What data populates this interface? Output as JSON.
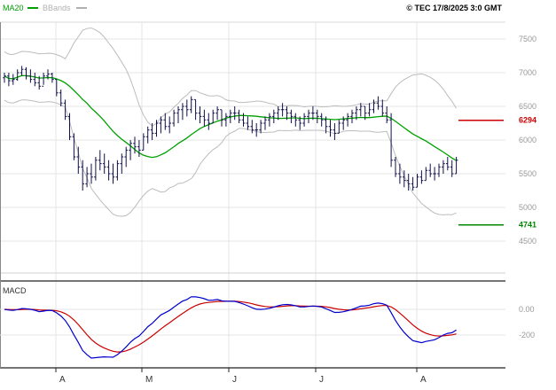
{
  "header": {
    "legend": [
      {
        "label": "MA20",
        "color": "#00a000"
      },
      {
        "label": "BBands",
        "color": "#b0b0b0"
      }
    ],
    "copyright": "© TEC 17/8/2025 3:0 GMT"
  },
  "macd_panel": {
    "title": "MACD"
  },
  "colors": {
    "bars": "#10104a",
    "ma20": "#00a000",
    "bbands": "#bcbcbc",
    "grid": "#e4e4e4",
    "axis_text": "#999999",
    "frame": "#333333",
    "resistance": "#cc0000",
    "support": "#008800",
    "macd_line": "#0000cc",
    "macd_signal": "#cc0000"
  },
  "chart_data": {
    "type": "ohlc",
    "title": "Daily price chart with MA20, Bollinger Bands and MACD",
    "price_axis": {
      "ticks": [
        7500,
        7000,
        6500,
        6000,
        5500,
        5000,
        4500
      ],
      "labels": [
        "7500",
        "7000",
        "6500",
        "6000",
        "5500",
        "5000",
        "4500"
      ]
    },
    "x_axis": {
      "labels": [
        "A",
        "M",
        "J",
        "J",
        "A"
      ],
      "positions": [
        63,
        160,
        258,
        356,
        470
      ]
    },
    "levels": [
      {
        "value": 6294,
        "label": "6294",
        "color": "#cc0000",
        "role": "resistance"
      },
      {
        "value": 4741,
        "label": "4741",
        "color": "#008800",
        "role": "support"
      }
    ],
    "indicators": {
      "ma20": {
        "period": 20,
        "color": "#00a000"
      },
      "bbands": {
        "period": 20,
        "k": 2,
        "color": "#bcbcbc"
      }
    },
    "macd": {
      "fast": 12,
      "slow": 26,
      "signal_period": 9,
      "axis": {
        "values": [
          0,
          -200
        ],
        "labels": [
          "0.00",
          "-200"
        ]
      }
    },
    "bars": [
      [
        7000,
        6850,
        6950
      ],
      [
        7000,
        6800,
        6880
      ],
      [
        6980,
        6820,
        6900
      ],
      [
        7050,
        6880,
        7000
      ],
      [
        7100,
        6950,
        7050
      ],
      [
        7080,
        6900,
        6950
      ],
      [
        7050,
        6850,
        6900
      ],
      [
        7000,
        6800,
        6850
      ],
      [
        6950,
        6750,
        6800
      ],
      [
        7000,
        6820,
        6950
      ],
      [
        7050,
        6900,
        6980
      ],
      [
        7000,
        6850,
        6900
      ],
      [
        6900,
        6650,
        6700
      ],
      [
        6750,
        6500,
        6550
      ],
      [
        6600,
        6300,
        6350
      ],
      [
        6400,
        6000,
        6050
      ],
      [
        6100,
        5700,
        5750
      ],
      [
        5900,
        5500,
        5600
      ],
      [
        5700,
        5250,
        5350
      ],
      [
        5600,
        5300,
        5500
      ],
      [
        5650,
        5350,
        5450
      ],
      [
        5750,
        5400,
        5700
      ],
      [
        5850,
        5550,
        5650
      ],
      [
        5800,
        5500,
        5600
      ],
      [
        5700,
        5400,
        5500
      ],
      [
        5650,
        5350,
        5450
      ],
      [
        5700,
        5400,
        5650
      ],
      [
        5800,
        5500,
        5750
      ],
      [
        5900,
        5600,
        5850
      ],
      [
        6000,
        5700,
        5950
      ],
      [
        6050,
        5800,
        5900
      ],
      [
        6000,
        5750,
        5850
      ],
      [
        6100,
        5850,
        6050
      ],
      [
        6200,
        5950,
        6150
      ],
      [
        6250,
        6000,
        6100
      ],
      [
        6300,
        6050,
        6250
      ],
      [
        6350,
        6100,
        6300
      ],
      [
        6400,
        6150,
        6200
      ],
      [
        6350,
        6100,
        6250
      ],
      [
        6450,
        6200,
        6400
      ],
      [
        6500,
        6250,
        6450
      ],
      [
        6550,
        6300,
        6500
      ],
      [
        6600,
        6350,
        6450
      ],
      [
        6650,
        6400,
        6600
      ],
      [
        6600,
        6300,
        6400
      ],
      [
        6500,
        6250,
        6350
      ],
      [
        6450,
        6200,
        6300
      ],
      [
        6400,
        6150,
        6250
      ],
      [
        6450,
        6250,
        6400
      ],
      [
        6500,
        6300,
        6450
      ],
      [
        6450,
        6200,
        6300
      ],
      [
        6400,
        6200,
        6350
      ],
      [
        6450,
        6250,
        6400
      ],
      [
        6500,
        6300,
        6400
      ],
      [
        6450,
        6250,
        6300
      ],
      [
        6400,
        6200,
        6250
      ],
      [
        6350,
        6150,
        6200
      ],
      [
        6300,
        6100,
        6150
      ],
      [
        6250,
        6050,
        6150
      ],
      [
        6300,
        6100,
        6250
      ],
      [
        6350,
        6150,
        6300
      ],
      [
        6400,
        6200,
        6350
      ],
      [
        6450,
        6250,
        6400
      ],
      [
        6500,
        6300,
        6450
      ],
      [
        6550,
        6350,
        6450
      ],
      [
        6500,
        6300,
        6400
      ],
      [
        6450,
        6250,
        6350
      ],
      [
        6400,
        6200,
        6300
      ],
      [
        6350,
        6150,
        6250
      ],
      [
        6400,
        6200,
        6350
      ],
      [
        6450,
        6250,
        6400
      ],
      [
        6500,
        6300,
        6400
      ],
      [
        6450,
        6250,
        6350
      ],
      [
        6400,
        6200,
        6300
      ],
      [
        6350,
        6100,
        6200
      ],
      [
        6300,
        6050,
        6150
      ],
      [
        6250,
        6000,
        6100
      ],
      [
        6300,
        6100,
        6250
      ],
      [
        6350,
        6150,
        6300
      ],
      [
        6400,
        6200,
        6350
      ],
      [
        6450,
        6250,
        6400
      ],
      [
        6500,
        6300,
        6450
      ],
      [
        6550,
        6350,
        6500
      ],
      [
        6500,
        6300,
        6400
      ],
      [
        6550,
        6350,
        6450
      ],
      [
        6600,
        6400,
        6550
      ],
      [
        6650,
        6450,
        6500
      ],
      [
        6600,
        6350,
        6400
      ],
      [
        6500,
        6250,
        6300
      ],
      [
        6400,
        5600,
        5700
      ],
      [
        5750,
        5450,
        5500
      ],
      [
        5650,
        5350,
        5450
      ],
      [
        5550,
        5300,
        5400
      ],
      [
        5500,
        5250,
        5350
      ],
      [
        5450,
        5250,
        5300
      ],
      [
        5500,
        5300,
        5450
      ],
      [
        5550,
        5350,
        5400
      ],
      [
        5600,
        5400,
        5550
      ],
      [
        5650,
        5450,
        5500
      ],
      [
        5600,
        5400,
        5500
      ],
      [
        5650,
        5450,
        5600
      ],
      [
        5700,
        5500,
        5650
      ],
      [
        5750,
        5550,
        5600
      ],
      [
        5700,
        5450,
        5500
      ],
      [
        5750,
        5500,
        5700
      ]
    ]
  }
}
